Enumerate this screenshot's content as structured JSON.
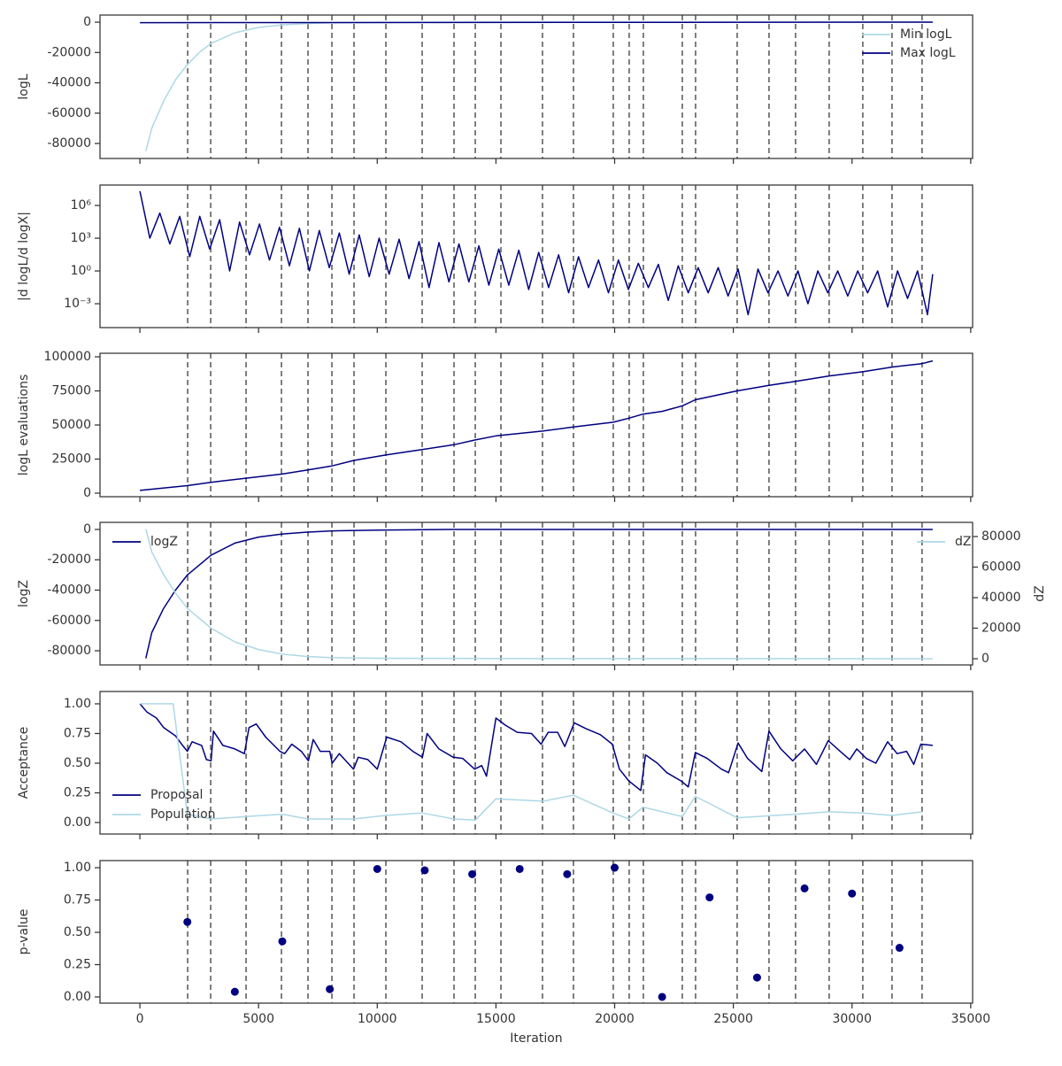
{
  "chart_data": [
    {
      "type": "line",
      "ylabel": "logL",
      "ylim": [
        -89900,
        4700
      ],
      "yticks": [
        0,
        -20000,
        -40000,
        -60000,
        -80000
      ],
      "legend": "upper right",
      "vlines": [
        2013,
        2982,
        4473,
        5964,
        7082,
        8089,
        9021,
        10363,
        11891,
        13233,
        14128,
        15209,
        16961,
        18265,
        19942,
        20613,
        21210,
        22850,
        23409,
        25161,
        26503,
        27621,
        29037,
        30454,
        31684,
        32951
      ],
      "series": [
        {
          "name": "Min logL",
          "color": "#add8e6",
          "x": [
            250,
            500,
            1000,
            1500,
            2000,
            2500,
            3000,
            4000,
            5000,
            6000,
            7000,
            8000,
            10000,
            15000,
            33400
          ],
          "values": [
            -85000,
            -70000,
            -52000,
            -38000,
            -28000,
            -20000,
            -14000,
            -7000,
            -3500,
            -1800,
            -900,
            -400,
            -100,
            0,
            0
          ]
        },
        {
          "name": "Max logL",
          "color": "#000080",
          "x": [
            0,
            33400
          ],
          "values": [
            -300,
            0
          ]
        }
      ]
    },
    {
      "type": "line",
      "ylabel": "|d logL/d logX|",
      "log": true,
      "ylim": [
        6.5e-06,
        74000000.0
      ],
      "yticks": [
        {
          "value": 1000000.0,
          "label": "10⁶"
        },
        {
          "value": 1000.0,
          "label": "10³"
        },
        {
          "value": 1,
          "label": "10⁰"
        },
        {
          "value": 0.001,
          "label": "10⁻³"
        }
      ],
      "series": [
        {
          "color": "#000080",
          "x": [
            0,
            420,
            840,
            1260,
            1680,
            2100,
            2520,
            2940,
            3360,
            3780,
            4200,
            4620,
            5040,
            5460,
            5880,
            6300,
            6720,
            7140,
            7560,
            7980,
            8400,
            8820,
            9240,
            9660,
            10080,
            10500,
            10920,
            11340,
            11760,
            12180,
            12600,
            13020,
            13440,
            13860,
            14280,
            14700,
            15120,
            15540,
            15960,
            16380,
            16800,
            17220,
            17640,
            18060,
            18480,
            18900,
            19320,
            19740,
            20160,
            20580,
            21000,
            21420,
            21840,
            22260,
            22680,
            23100,
            23520,
            23940,
            24360,
            24780,
            25200,
            25620,
            26040,
            26460,
            26880,
            27300,
            27720,
            28140,
            28560,
            28980,
            29400,
            29820,
            30240,
            30660,
            31080,
            31500,
            31920,
            32340,
            32760,
            33180,
            33400
          ],
          "values": [
            20000000.0,
            1000.0,
            200000.0,
            300.0,
            100000.0,
            20.0,
            100000.0,
            100.0,
            50000.0,
            1,
            30000.0,
            30.0,
            20000.0,
            10.0,
            10000.0,
            3,
            8000.0,
            1,
            5000.0,
            2,
            3000.0,
            0.5,
            2000.0,
            0.3,
            1000.0,
            0.5,
            800.0,
            0.2,
            500.0,
            0.03,
            400.0,
            0.1,
            300.0,
            0.1,
            200.0,
            0.05,
            100.0,
            0.05,
            80.0,
            0.02,
            50.0,
            0.03,
            30.0,
            0.01,
            20.0,
            0.03,
            10.0,
            0.01,
            10.0,
            0.02,
            5,
            0.03,
            4,
            0.002,
            3,
            0.01,
            2,
            0.01,
            2,
            0.005,
            1.5,
            0.0001,
            1.5,
            0.01,
            1,
            0.005,
            1,
            0.001,
            1,
            0.01,
            1,
            0.005,
            1,
            0.01,
            1,
            0.0005,
            1,
            0.003,
            1,
            0.0001,
            0.5
          ]
        }
      ]
    },
    {
      "type": "line",
      "ylabel": "logL evaluations",
      "ylim": [
        -2600,
        102600
      ],
      "yticks": [
        0,
        25000,
        50000,
        75000,
        100000
      ],
      "series": [
        {
          "color": "#000080",
          "x": [
            0,
            2000,
            3000,
            4470,
            6000,
            7080,
            8090,
            9020,
            10360,
            11890,
            13230,
            14130,
            15000,
            16960,
            18260,
            19940,
            20600,
            21200,
            22000,
            22850,
            23400,
            25160,
            26500,
            27620,
            29040,
            30450,
            31680,
            32950,
            33400
          ],
          "values": [
            2000,
            5500,
            8000,
            11000,
            14000,
            17000,
            20000,
            24000,
            28000,
            32000,
            35500,
            39000,
            42000,
            45500,
            48500,
            52000,
            55000,
            58000,
            60000,
            64000,
            68500,
            75000,
            79000,
            82000,
            86000,
            89000,
            92500,
            95000,
            97000
          ]
        }
      ]
    },
    {
      "type": "line",
      "ylabel": "logZ",
      "y2label": "dZ",
      "ylim": [
        -89340,
        4670
      ],
      "yticks": [
        0,
        -20000,
        -40000,
        -60000,
        -80000
      ],
      "y2lim": [
        -4060,
        89280
      ],
      "y2ticks": [
        0,
        20000,
        40000,
        60000,
        80000
      ],
      "series": [
        {
          "name": "logZ",
          "color": "#000080",
          "legend": "upper left",
          "x": [
            250,
            500,
            1000,
            1500,
            2000,
            3000,
            4000,
            5000,
            6000,
            7000,
            8000,
            10000,
            13000,
            33400
          ],
          "values": [
            -85000,
            -68000,
            -52000,
            -40000,
            -30000,
            -17000,
            -9000,
            -5000,
            -3000,
            -1800,
            -1000,
            -400,
            0,
            0
          ]
        },
        {
          "name": "dZ",
          "color": "#add8e6",
          "axis": "y2",
          "legend": "upper right",
          "x": [
            250,
            500,
            1000,
            1500,
            2000,
            3000,
            4000,
            5000,
            6000,
            7000,
            8000,
            10000,
            15000,
            33400
          ],
          "values": [
            85000,
            70000,
            55000,
            43000,
            33000,
            20000,
            11000,
            6000,
            3000,
            1500,
            700,
            300,
            100,
            0
          ]
        }
      ]
    },
    {
      "type": "line",
      "ylabel": "Acceptance",
      "ylim": [
        -0.097,
        1.104
      ],
      "legend": "lower left",
      "yticks": [
        {
          "value": 1,
          "label": "1.00"
        },
        {
          "value": 0.75,
          "label": "0.75"
        },
        {
          "value": 0.5,
          "label": "0.50"
        },
        {
          "value": 0.25,
          "label": "0.25"
        },
        {
          "value": 0,
          "label": "0.00"
        }
      ],
      "series": [
        {
          "name": "Proposal",
          "color": "#000080",
          "x": [
            0,
            300,
            700,
            1000,
            1500,
            1800,
            2000,
            2200,
            2600,
            2800,
            3000,
            3100,
            3500,
            4000,
            4400,
            4600,
            4900,
            5300,
            5900,
            6100,
            6400,
            6800,
            7100,
            7300,
            7600,
            8000,
            8100,
            8400,
            9000,
            9200,
            9600,
            10000,
            10400,
            11000,
            11500,
            11900,
            12100,
            12600,
            13200,
            13600,
            14100,
            14400,
            14600,
            15000,
            15400,
            15900,
            16500,
            16900,
            17200,
            17600,
            17900,
            18300,
            18800,
            19400,
            19900,
            20200,
            20600,
            21100,
            21300,
            21800,
            22200,
            22800,
            23100,
            23400,
            23900,
            24500,
            24800,
            25200,
            25600,
            26200,
            26500,
            27000,
            27500,
            28000,
            28500,
            29000,
            29500,
            29900,
            30200,
            30600,
            31000,
            31500,
            31900,
            32300,
            32600,
            32900,
            33400
          ],
          "values": [
            1.0,
            0.93,
            0.88,
            0.8,
            0.73,
            0.65,
            0.6,
            0.68,
            0.65,
            0.53,
            0.52,
            0.77,
            0.65,
            0.62,
            0.58,
            0.8,
            0.83,
            0.72,
            0.6,
            0.58,
            0.66,
            0.6,
            0.52,
            0.7,
            0.6,
            0.6,
            0.5,
            0.58,
            0.45,
            0.55,
            0.53,
            0.45,
            0.72,
            0.68,
            0.6,
            0.55,
            0.75,
            0.62,
            0.55,
            0.54,
            0.45,
            0.48,
            0.39,
            0.88,
            0.82,
            0.76,
            0.75,
            0.66,
            0.76,
            0.76,
            0.64,
            0.84,
            0.79,
            0.74,
            0.66,
            0.45,
            0.35,
            0.27,
            0.57,
            0.5,
            0.42,
            0.35,
            0.3,
            0.59,
            0.54,
            0.45,
            0.42,
            0.67,
            0.54,
            0.43,
            0.77,
            0.62,
            0.52,
            0.62,
            0.49,
            0.69,
            0.6,
            0.53,
            0.62,
            0.54,
            0.5,
            0.68,
            0.58,
            0.6,
            0.49,
            0.66,
            0.65
          ]
        },
        {
          "name": "Population",
          "color": "#add8e6",
          "x": [
            0,
            1400,
            2000,
            3000,
            4470,
            6000,
            7080,
            9000,
            10360,
            11900,
            13230,
            14130,
            15000,
            17000,
            18260,
            19940,
            20600,
            21200,
            22850,
            23400,
            25160,
            27620,
            29040,
            30450,
            31680,
            32950
          ],
          "values": [
            1.0,
            1.0,
            0.07,
            0.03,
            0.05,
            0.07,
            0.03,
            0.03,
            0.06,
            0.08,
            0.03,
            0.02,
            0.2,
            0.18,
            0.23,
            0.08,
            0.03,
            0.13,
            0.05,
            0.22,
            0.04,
            0.07,
            0.09,
            0.08,
            0.06,
            0.09
          ]
        }
      ]
    },
    {
      "type": "scatter",
      "ylabel": "p-value",
      "xlabel": "Iteration",
      "ylim": [
        -0.048,
        1.055
      ],
      "xlim": [
        -1680,
        35080
      ],
      "xticks": [
        0,
        5000,
        10000,
        15000,
        20000,
        25000,
        30000,
        35000
      ],
      "yticks": [
        {
          "value": 1,
          "label": "1.00"
        },
        {
          "value": 0.75,
          "label": "0.75"
        },
        {
          "value": 0.5,
          "label": "0.50"
        },
        {
          "value": 0.25,
          "label": "0.25"
        },
        {
          "value": 0,
          "label": "0.00"
        }
      ],
      "series": [
        {
          "color": "#000080",
          "x": [
            2000,
            4000,
            6000,
            8000,
            10000,
            12000,
            14000,
            16000,
            18000,
            20000,
            22000,
            24000,
            26000,
            28000,
            30000,
            32000
          ],
          "values": [
            0.58,
            0.04,
            0.43,
            0.06,
            0.99,
            0.98,
            0.95,
            0.99,
            0.95,
            1.0,
            0.0,
            0.77,
            0.15,
            0.84,
            0.8,
            0.38
          ]
        }
      ]
    }
  ]
}
